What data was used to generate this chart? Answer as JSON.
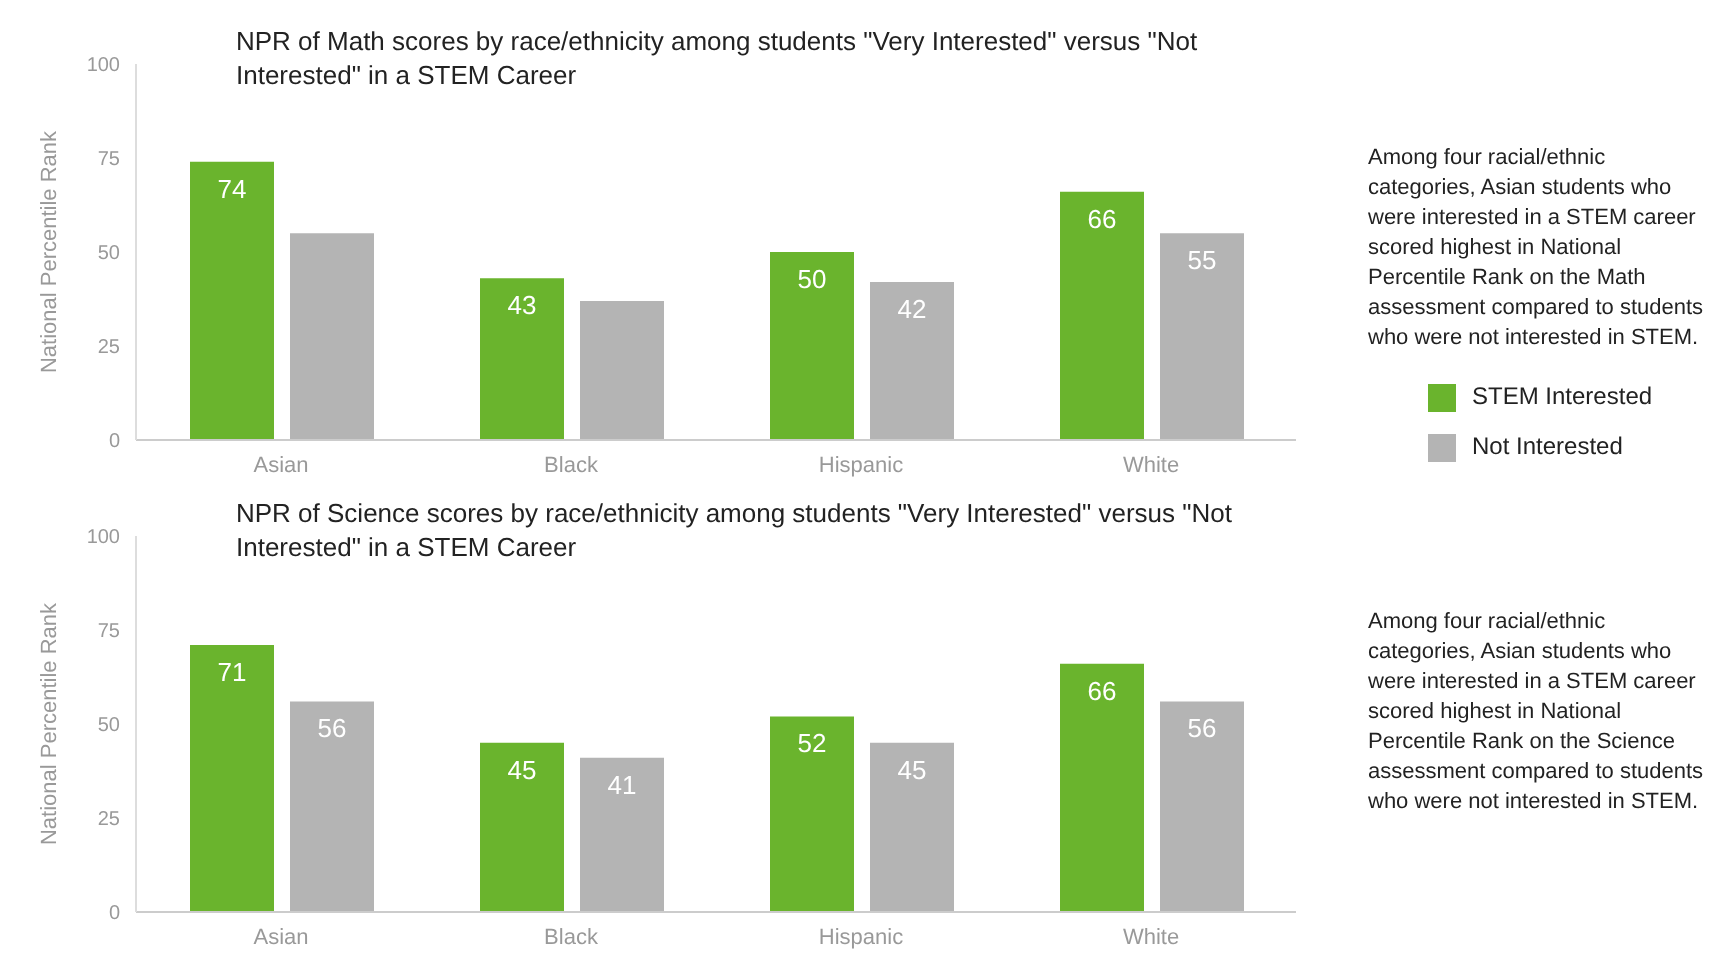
{
  "chart_data": [
    {
      "type": "bar",
      "title": "NPR of Math scores by race/ethnicity among students \"Very Interested\" versus \"Not Interested\" in a STEM Career",
      "ylabel": "National Percentile Rank",
      "categories": [
        "Asian",
        "Black",
        "Hispanic",
        "White"
      ],
      "series": [
        {
          "name": "STEM Interested",
          "color": "#6ab42d",
          "values": [
            74,
            43,
            50,
            66
          ],
          "value_labels": [
            "74",
            "43",
            "50",
            "66"
          ]
        },
        {
          "name": "Not Interested",
          "color": "#b4b4b4",
          "values": [
            55,
            37,
            42,
            55
          ],
          "value_labels": [
            null,
            null,
            "42",
            "55"
          ]
        }
      ],
      "ylim": [
        0,
        100
      ],
      "yticks": [
        0,
        25,
        50,
        75,
        100
      ],
      "legend": "right",
      "annotations": [
        "Among four racial/ethnic categories, Asian students who were interested in a STEM career scored highest in National Percentile Rank on the Math assessment compared to students who were not interested in STEM."
      ]
    },
    {
      "type": "bar",
      "title": "NPR of Science scores by race/ethnicity among students \"Very Interested\" versus \"Not Interested\" in a STEM Career",
      "ylabel": "National Percentile Rank",
      "categories": [
        "Asian",
        "Black",
        "Hispanic",
        "White"
      ],
      "series": [
        {
          "color": "#6ab42d",
          "values": [
            71,
            45,
            52,
            66
          ]
        },
        {
          "color": "#b4b4b4",
          "values": [
            56,
            41,
            45,
            56
          ]
        }
      ],
      "ylim": [
        0,
        100
      ],
      "yticks": [
        0,
        25,
        50,
        75,
        100
      ],
      "data_labels": true,
      "annotations": [
        "Among four racial/ethnic categories, Asian students who were interested in a STEM career scored highest in National Percentile Rank on the Science assessment compared to students who were not interested in STEM."
      ]
    }
  ]
}
